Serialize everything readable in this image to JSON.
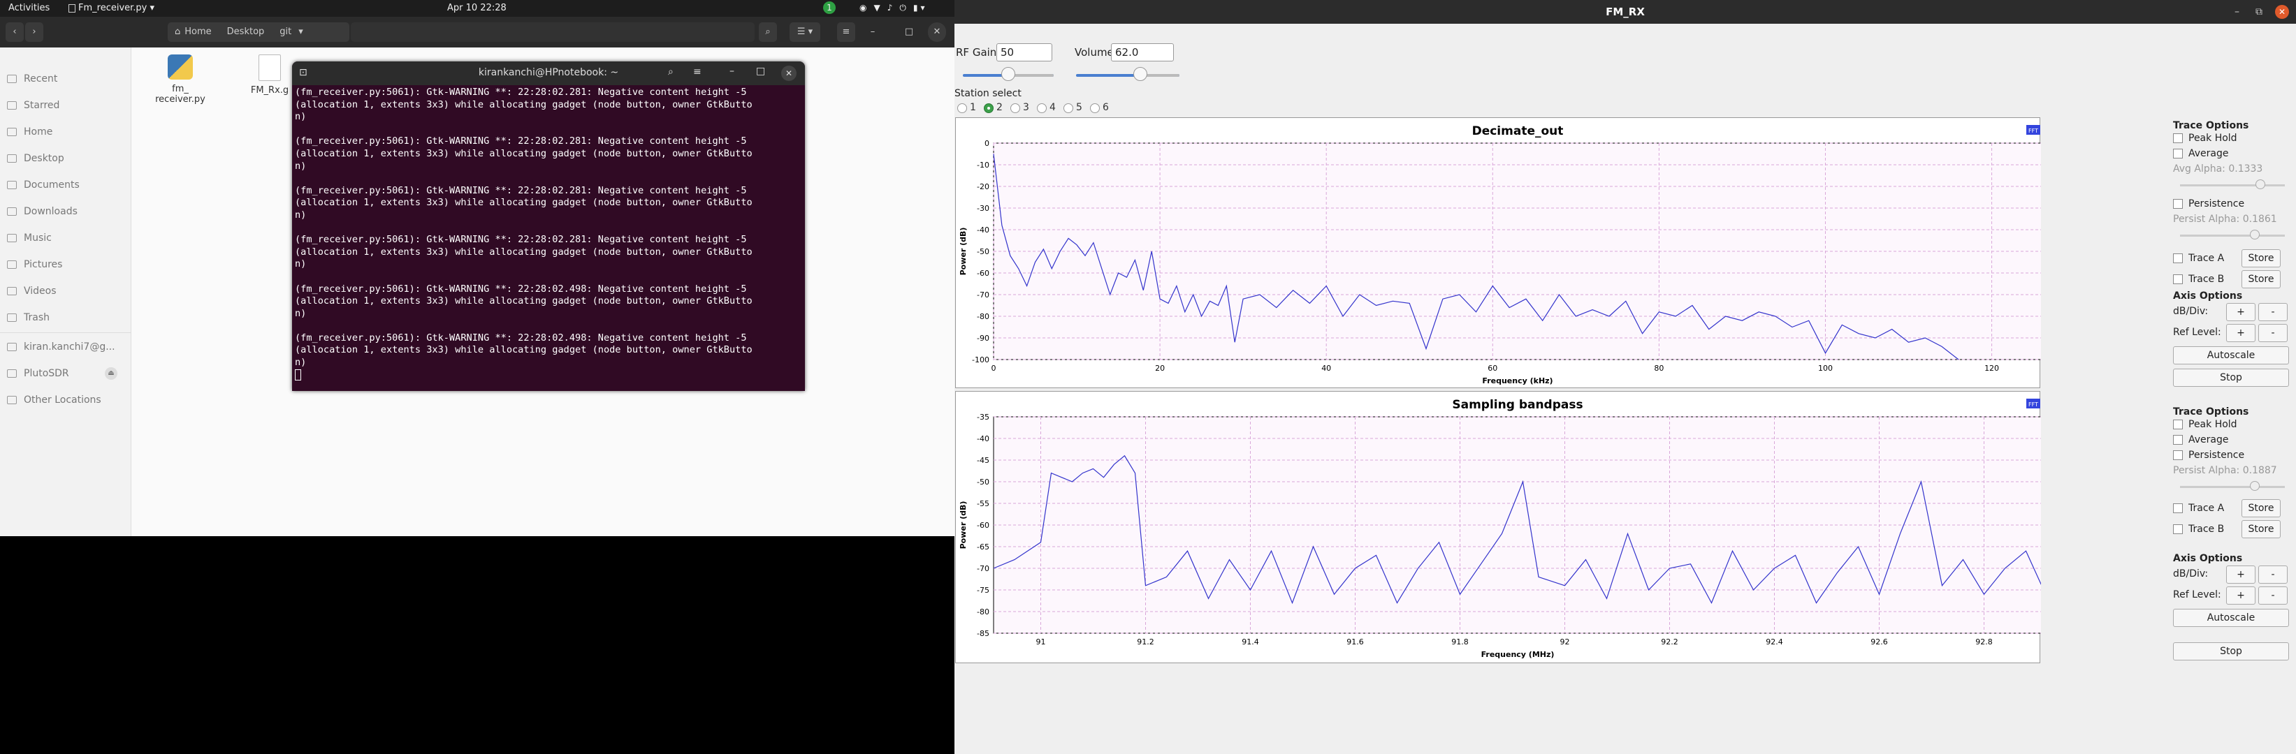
{
  "topbar": {
    "activities": "Activities",
    "app_name": "Fm_receiver.py",
    "clock": "Apr 10  22:28",
    "notify_count": "1"
  },
  "files": {
    "path": [
      "Home",
      "Desktop",
      "git"
    ],
    "sidebar": [
      "Recent",
      "Starred",
      "Home",
      "Desktop",
      "Documents",
      "Downloads",
      "Music",
      "Pictures",
      "Videos",
      "Trash",
      "kiran.kanchi7@g...",
      "PlutoSDR",
      "Other Locations"
    ],
    "items": [
      {
        "name": "fm_\nreceiver.py"
      },
      {
        "name": "FM_Rx.g"
      }
    ]
  },
  "terminal": {
    "title": "kirankanchi@HPnotebook: ~",
    "lines": [
      "(fm_receiver.py:5061): Gtk-WARNING **: 22:28:02.281: Negative content height -5",
      "(allocation 1, extents 3x3) while allocating gadget (node button, owner GtkButto",
      "n)",
      "",
      "(fm_receiver.py:5061): Gtk-WARNING **: 22:28:02.281: Negative content height -5",
      "(allocation 1, extents 3x3) while allocating gadget (node button, owner GtkButto",
      "n)",
      "",
      "(fm_receiver.py:5061): Gtk-WARNING **: 22:28:02.281: Negative content height -5",
      "(allocation 1, extents 3x3) while allocating gadget (node button, owner GtkButto",
      "n)",
      "",
      "(fm_receiver.py:5061): Gtk-WARNING **: 22:28:02.281: Negative content height -5",
      "(allocation 1, extents 3x3) while allocating gadget (node button, owner GtkButto",
      "n)",
      "",
      "(fm_receiver.py:5061): Gtk-WARNING **: 22:28:02.498: Negative content height -5",
      "(allocation 1, extents 3x3) while allocating gadget (node button, owner GtkButto",
      "n)",
      "",
      "(fm_receiver.py:5061): Gtk-WARNING **: 22:28:02.498: Negative content height -5",
      "(allocation 1, extents 3x3) while allocating gadget (node button, owner GtkButto",
      "n)"
    ]
  },
  "fm": {
    "title": "FM_RX",
    "rf_gain_label": "RF Gain:",
    "rf_gain_value": "50",
    "rf_gain_fraction": 0.5,
    "volume_label": "Volume:",
    "volume_value": "62.0",
    "volume_fraction": 0.62,
    "station_label": "Station select",
    "stations": [
      "1",
      "2",
      "3",
      "4",
      "5",
      "6"
    ],
    "selected_station": "2",
    "plot1_options": {
      "trace_options": "Trace Options",
      "peak_hold": "Peak Hold",
      "average": "Average",
      "avg_alpha": "Avg Alpha: 0.1333",
      "persistence": "Persistence",
      "persist_alpha": "Persist Alpha: 0.1861",
      "trace_a": "Trace A",
      "trace_b": "Trace B",
      "store": "Store",
      "axis_options": "Axis Options",
      "db_div": "dB/Div:",
      "ref_level": "Ref Level:",
      "plus": "+",
      "minus": "-",
      "autoscale": "Autoscale",
      "stop": "Stop"
    },
    "plot2_options": {
      "trace_options": "Trace Options",
      "peak_hold": "Peak Hold",
      "average": "Average",
      "persistence": "Persistence",
      "persist_alpha": "Persist Alpha: 0.1887",
      "trace_a": "Trace A",
      "trace_b": "Trace B",
      "store": "Store",
      "axis_options": "Axis Options",
      "db_div": "dB/Div:",
      "ref_level": "Ref Level:",
      "plus": "+",
      "minus": "-",
      "autoscale": "Autoscale",
      "stop": "Stop"
    },
    "badge": "FFT"
  },
  "chart_data": [
    {
      "type": "line",
      "title": "Decimate_out",
      "xlabel": "Frequency (kHz)",
      "ylabel": "Power (dB)",
      "xlim": [
        0,
        126
      ],
      "ylim": [
        -100,
        0
      ],
      "xticks": [
        0,
        20,
        40,
        60,
        80,
        100,
        120
      ],
      "yticks": [
        0,
        -10,
        -20,
        -30,
        -40,
        -50,
        -60,
        -70,
        -80,
        -90,
        -100
      ],
      "grid": true,
      "series": [
        {
          "name": "Decimate_out",
          "color": "#3333cc",
          "x": [
            0,
            1,
            2,
            3,
            4,
            5,
            6,
            7,
            8,
            9,
            10,
            11,
            12,
            13,
            14,
            15,
            16,
            17,
            18,
            19,
            20,
            21,
            22,
            23,
            24,
            25,
            26,
            27,
            28,
            29,
            30,
            32,
            34,
            36,
            38,
            40,
            42,
            44,
            46,
            48,
            50,
            52,
            54,
            56,
            58,
            60,
            62,
            64,
            66,
            68,
            70,
            72,
            74,
            76,
            78,
            80,
            82,
            84,
            86,
            88,
            90,
            92,
            94,
            96,
            98,
            100,
            102,
            104,
            106,
            108,
            110,
            112,
            114,
            116
          ],
          "y": [
            -5,
            -38,
            -52,
            -58,
            -66,
            -55,
            -49,
            -58,
            -50,
            -44,
            -47,
            -52,
            -46,
            -58,
            -70,
            -60,
            -62,
            -54,
            -68,
            -50,
            -72,
            -74,
            -66,
            -78,
            -70,
            -80,
            -73,
            -75,
            -66,
            -92,
            -72,
            -70,
            -76,
            -68,
            -74,
            -66,
            -80,
            -70,
            -75,
            -73,
            -74,
            -95,
            -72,
            -70,
            -78,
            -66,
            -76,
            -72,
            -82,
            -70,
            -80,
            -77,
            -80,
            -73,
            -88,
            -78,
            -80,
            -75,
            -86,
            -80,
            -82,
            -78,
            -80,
            -85,
            -82,
            -97,
            -84,
            -88,
            -90,
            -86,
            -92,
            -90,
            -94,
            -100
          ]
        }
      ]
    },
    {
      "type": "line",
      "title": "Sampling bandpass",
      "xlabel": "Frequency (MHz)",
      "ylabel": "Power (dB)",
      "xlim": [
        90.91,
        92.91
      ],
      "ylim": [
        -85,
        -35
      ],
      "xticks": [
        91,
        91.2,
        91.4,
        91.6,
        91.8,
        92,
        92.2,
        92.4,
        92.6,
        92.8
      ],
      "yticks": [
        -35,
        -40,
        -45,
        -50,
        -55,
        -60,
        -65,
        -70,
        -75,
        -80,
        -85
      ],
      "grid": true,
      "series": [
        {
          "name": "Sampling bandpass",
          "color": "#3333cc",
          "x": [
            90.91,
            90.95,
            91.0,
            91.02,
            91.04,
            91.06,
            91.08,
            91.1,
            91.12,
            91.14,
            91.16,
            91.18,
            91.2,
            91.24,
            91.28,
            91.32,
            91.36,
            91.4,
            91.44,
            91.48,
            91.52,
            91.56,
            91.6,
            91.64,
            91.68,
            91.72,
            91.76,
            91.8,
            91.84,
            91.88,
            91.92,
            91.95,
            92.0,
            92.04,
            92.08,
            92.12,
            92.16,
            92.2,
            92.24,
            92.28,
            92.32,
            92.36,
            92.4,
            92.44,
            92.48,
            92.52,
            92.56,
            92.6,
            92.64,
            92.68,
            92.72,
            92.76,
            92.8,
            92.84,
            92.88,
            92.91
          ],
          "y": [
            -70,
            -68,
            -64,
            -48,
            -49,
            -50,
            -48,
            -47,
            -49,
            -46,
            -44,
            -48,
            -74,
            -72,
            -66,
            -77,
            -68,
            -75,
            -66,
            -78,
            -65,
            -76,
            -70,
            -67,
            -78,
            -70,
            -64,
            -76,
            -69,
            -62,
            -50,
            -72,
            -74,
            -68,
            -77,
            -62,
            -75,
            -70,
            -69,
            -78,
            -66,
            -75,
            -70,
            -67,
            -78,
            -71,
            -65,
            -76,
            -62,
            -50,
            -74,
            -68,
            -76,
            -70,
            -66,
            -74
          ]
        }
      ]
    }
  ]
}
